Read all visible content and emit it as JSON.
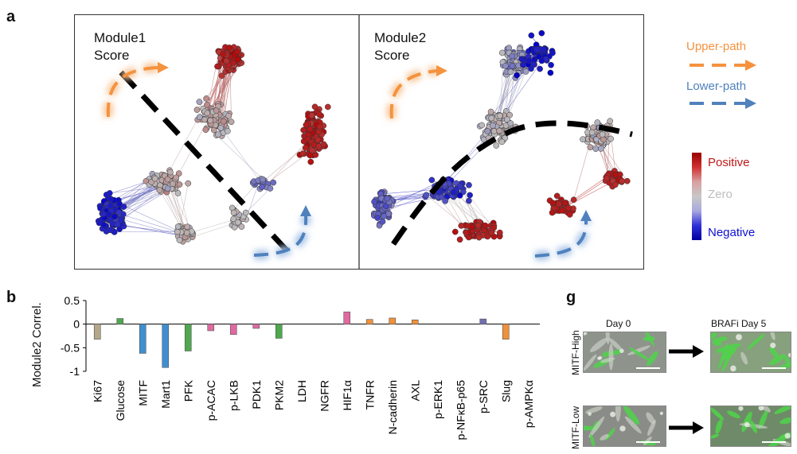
{
  "panel_a": {
    "letter": "a",
    "module1_title": "Module1\nScore",
    "module2_title": "Module2\nScore",
    "legend": {
      "upper_path": "Upper-path",
      "lower_path": "Lower-path",
      "upper_color": "#f5923e",
      "lower_color": "#4f81bd"
    },
    "colorbar": {
      "positive": "Positive",
      "zero": "Zero",
      "negative": "Negative",
      "positive_color": "#b40000",
      "zero_color": "#bdbdbd",
      "negative_color": "#0000c8"
    }
  },
  "panel_b": {
    "letter": "b",
    "chart_data": {
      "type": "bar",
      "title": "",
      "ylabel": "Module2 Correl.",
      "xlabel": "",
      "ylim": [
        -1,
        0.5
      ],
      "yticks": [
        "0.5",
        "0",
        "-0.5",
        "-1"
      ],
      "ytick_values": [
        0.5,
        0,
        -0.5,
        -1
      ],
      "categories": [
        "Ki67",
        "Glucose",
        "MITF",
        "Mart1",
        "PFK",
        "p-ACAC",
        "p-LKB",
        "PDK1",
        "PKM2",
        "LDH",
        "NGFR",
        "HIF1α",
        "TNFR",
        "N-cadherin",
        "AXL",
        "p-ERK1",
        "p-NFκB-p65",
        "p-SRC",
        "Slug",
        "p-AMPKα"
      ],
      "values": [
        -0.32,
        0.12,
        -0.62,
        -0.92,
        -0.57,
        -0.14,
        -0.22,
        -0.09,
        -0.3,
        0,
        0,
        0.26,
        0.1,
        0.13,
        0.09,
        0,
        0,
        0.11,
        -0.32,
        0
      ],
      "colors": [
        "#b5a88a",
        "#4fa84f",
        "#3f8fd0",
        "#3f8fd0",
        "#4fa84f",
        "#e06aa0",
        "#e06aa0",
        "#e06aa0",
        "#4fa84f",
        "#888888",
        "#888888",
        "#e06aa0",
        "#f0913a",
        "#f0913a",
        "#f0913a",
        "#888888",
        "#888888",
        "#7070b0",
        "#f0913a",
        "#888888"
      ]
    }
  },
  "panel_g": {
    "letter": "g",
    "col_day0": "Day 0",
    "col_day5": "BRAFi Day 5",
    "row_high": "MITF-High",
    "row_low": "MITF-Low"
  }
}
